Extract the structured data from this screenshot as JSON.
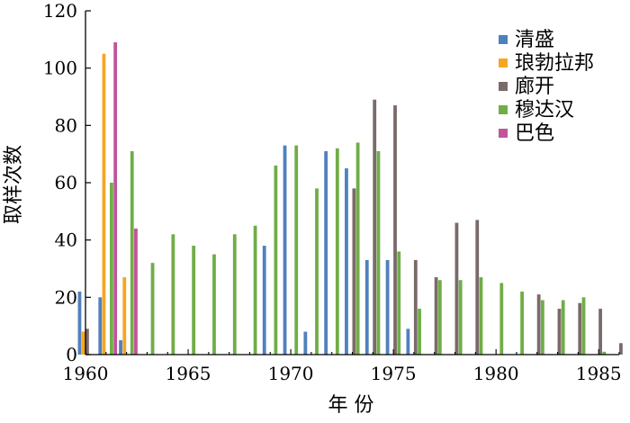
{
  "chart_data": {
    "type": "bar",
    "title": "",
    "xlabel": "年 份",
    "ylabel": "取样次数",
    "xlim": [
      1960,
      1986
    ],
    "ylim": [
      0,
      120
    ],
    "x_ticks": [
      1960,
      1965,
      1970,
      1975,
      1980,
      1985
    ],
    "y_ticks": [
      0,
      20,
      40,
      60,
      80,
      100,
      120
    ],
    "x_tick_labels": [
      "1960",
      "1965",
      "1970",
      "1975",
      "1980",
      "1985"
    ],
    "y_tick_labels": [
      "0",
      "20",
      "40",
      "60",
      "80",
      "100",
      "120"
    ],
    "grid": false,
    "legend_position": "top-right",
    "series": [
      {
        "name": "清盛",
        "color": "#4f81bd",
        "points": [
          [
            1960,
            22
          ],
          [
            1961,
            20
          ],
          [
            1962,
            5
          ],
          [
            1969,
            38
          ],
          [
            1970,
            73
          ],
          [
            1971,
            8
          ],
          [
            1972,
            71
          ],
          [
            1973,
            65
          ],
          [
            1974,
            33
          ],
          [
            1975,
            33
          ],
          [
            1976,
            9
          ]
        ]
      },
      {
        "name": "琅勃拉邦",
        "color": "#f5a623",
        "points": [
          [
            1960,
            8
          ],
          [
            1961,
            105
          ],
          [
            1962,
            27
          ]
        ]
      },
      {
        "name": "廊开",
        "color": "#7a6a6a",
        "points": [
          [
            1960,
            9
          ],
          [
            1973,
            58
          ],
          [
            1974,
            89
          ],
          [
            1975,
            87
          ],
          [
            1976,
            33
          ],
          [
            1977,
            27
          ],
          [
            1978,
            46
          ],
          [
            1979,
            47
          ],
          [
            1982,
            21
          ],
          [
            1983,
            16
          ],
          [
            1984,
            18
          ],
          [
            1985,
            16
          ],
          [
            1986,
            4
          ]
        ]
      },
      {
        "name": "穆达汉",
        "color": "#70ad47",
        "points": [
          [
            1961,
            60
          ],
          [
            1962,
            71
          ],
          [
            1963,
            32
          ],
          [
            1964,
            42
          ],
          [
            1965,
            38
          ],
          [
            1966,
            35
          ],
          [
            1967,
            42
          ],
          [
            1968,
            45
          ],
          [
            1969,
            66
          ],
          [
            1970,
            73
          ],
          [
            1971,
            58
          ],
          [
            1972,
            72
          ],
          [
            1973,
            74
          ],
          [
            1974,
            71
          ],
          [
            1975,
            36
          ],
          [
            1976,
            16
          ],
          [
            1977,
            26
          ],
          [
            1978,
            26
          ],
          [
            1979,
            27
          ],
          [
            1980,
            25
          ],
          [
            1981,
            22
          ],
          [
            1982,
            19
          ],
          [
            1983,
            19
          ],
          [
            1984,
            20
          ],
          [
            1985,
            1
          ]
        ]
      },
      {
        "name": "巴色",
        "color": "#c0559a",
        "points": [
          [
            1961,
            109
          ],
          [
            1962,
            44
          ]
        ]
      }
    ]
  }
}
